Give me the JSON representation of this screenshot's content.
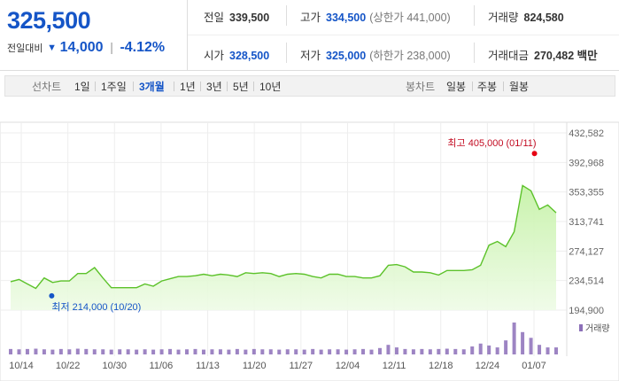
{
  "quote": {
    "price": "325,500",
    "change_label": "전일대비",
    "change_arrow": "▼",
    "change_value": "14,000",
    "change_percent": "-4.12%",
    "stats": {
      "prev_close": {
        "label": "전일",
        "value": "339,500"
      },
      "open": {
        "label": "시가",
        "value": "328,500"
      },
      "high": {
        "label": "고가",
        "value": "334,500",
        "sub": "(상한가 441,000)"
      },
      "low": {
        "label": "저가",
        "value": "325,000",
        "sub": "(하한가 238,000)"
      },
      "volume": {
        "label": "거래량",
        "value": "824,580"
      },
      "trade_value": {
        "label": "거래대금",
        "value": "270,482 백만"
      }
    },
    "colors": {
      "down": "#1555c7",
      "up": "#d0021b"
    }
  },
  "tabs": {
    "line_label": "선차트",
    "line_periods": [
      "1일",
      "1주일",
      "3개월",
      "1년",
      "3년",
      "5년",
      "10년"
    ],
    "active_period": "3개월",
    "candle_label": "봉차트",
    "candle_periods": [
      "일봉",
      "주봉",
      "월봉"
    ]
  },
  "chart_data": {
    "type": "area",
    "title": "",
    "x_tick_labels": [
      "10/14",
      "10/22",
      "10/30",
      "11/06",
      "11/13",
      "11/20",
      "11/27",
      "12/04",
      "12/11",
      "12/18",
      "12/24",
      "01/07"
    ],
    "y_tick_labels": [
      "432,582",
      "392,968",
      "353,355",
      "313,741",
      "274,127",
      "234,514",
      "194,900"
    ],
    "ylim": [
      194900,
      432582
    ],
    "grid": true,
    "series": [
      {
        "values": [
          233000,
          236000,
          230000,
          224000,
          238000,
          232000,
          234000,
          234000,
          244000,
          244000,
          252000,
          238000,
          225000,
          225000,
          225000,
          225000,
          230000,
          227000,
          234000,
          237000,
          240000,
          240000,
          241000,
          243000,
          241000,
          243000,
          242000,
          240000,
          245000,
          244000,
          245000,
          244000,
          240000,
          243000,
          244000,
          243000,
          240000,
          238000,
          243000,
          243000,
          240000,
          240000,
          238000,
          238000,
          241000,
          255000,
          256000,
          253000,
          246000,
          246000,
          245000,
          242000,
          248000,
          248000,
          248000,
          249000,
          255000,
          282000,
          287000,
          280000,
          300000,
          362000,
          355000,
          330000,
          336000,
          325500
        ]
      }
    ],
    "volume_label": "거래량",
    "volume_values": [
      17,
      16,
      17,
      18,
      16,
      15,
      17,
      16,
      18,
      17,
      16,
      16,
      15,
      16,
      16,
      15,
      16,
      15,
      16,
      17,
      15,
      16,
      17,
      15,
      16,
      16,
      15,
      17,
      15,
      17,
      16,
      16,
      15,
      16,
      16,
      15,
      17,
      15,
      16,
      16,
      15,
      16,
      17,
      15,
      20,
      30,
      22,
      17,
      16,
      17,
      16,
      17,
      18,
      17,
      16,
      25,
      34,
      28,
      22,
      44,
      100,
      70,
      52,
      30,
      22,
      22
    ],
    "annotations": {
      "high": {
        "label": "최고 405,000 (01/11)",
        "value": 405000
      },
      "low": {
        "label": "최저 214,000 (10/20)",
        "value": 214000
      }
    }
  }
}
